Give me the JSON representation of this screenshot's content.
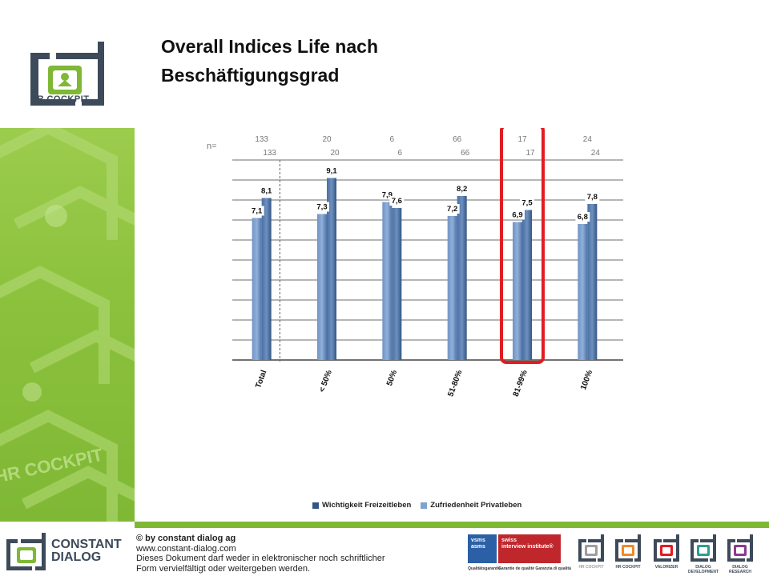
{
  "slide": {
    "title_line1": "Overall Indices Life nach",
    "title_line2": "Beschäftigungsgrad",
    "logo_text": "HR COCKPIT",
    "watermark_text": "HR COCKPIT"
  },
  "colors": {
    "sidebar_green": "#8bc13c",
    "series1": "#4a6fa3",
    "series2": "#7ea3d1",
    "highlight": "#e31b23",
    "brand_dark": "#3d4a5a"
  },
  "chart_data": {
    "type": "bar",
    "categories": [
      "Total",
      "< 50%",
      "50%",
      "51-80%",
      "81-99%",
      "100%"
    ],
    "series": [
      {
        "name": "Wichtigkeit Freizeitleben",
        "values": [
          7.1,
          7.3,
          7.9,
          7.2,
          6.9,
          6.8
        ],
        "labels": [
          "7,1",
          "7,3",
          "7,9",
          "7,2",
          "6,9",
          "6,8"
        ]
      },
      {
        "name": "Zufriedenheit Privatleben",
        "values": [
          8.1,
          9.1,
          7.6,
          8.2,
          7.5,
          7.8
        ],
        "labels": [
          "8,1",
          "9,1",
          "7,6",
          "8,2",
          "7,5",
          "7,8"
        ]
      }
    ],
    "n_label": "n=",
    "n_values": [
      [
        "133",
        "20",
        "6",
        "66",
        "17",
        "24"
      ],
      [
        "133",
        "20",
        "6",
        "66",
        "17",
        "24"
      ]
    ],
    "ylim": [
      0,
      10
    ],
    "grid": true,
    "legend_position": "bottom",
    "highlighted_category": "81-99%"
  },
  "legend": {
    "items": [
      {
        "label": "Wichtigkeit Freizeitleben"
      },
      {
        "label": "Zufriedenheit Privatleben"
      }
    ]
  },
  "footer": {
    "brand_line1": "CONSTANT",
    "brand_line2": "DIALOG",
    "copyright": "© by constant dialog ag",
    "website": "www.constant-dialog.com",
    "notice_line1": "Dieses Dokument darf weder in elektronischer noch schriftlicher",
    "notice_line2": "Form vervielfältigt oder weitergeben werden.",
    "badge1_line1": "vsms",
    "badge1_line2": "asms",
    "badge1_sub": "Qualitätsgarantie",
    "badge2_line1": "swiss",
    "badge2_line2": "interview institute®",
    "badge2_sub": "Garantie de qualité   Garanzia di qualità",
    "products": [
      {
        "label": "HR COCKPIT",
        "color": "#9e9e9e",
        "icon": "grey-product-icon"
      },
      {
        "label": "HR COCKPIT",
        "color": "#f08a24",
        "icon": "hr-cockpit-icon"
      },
      {
        "label": "VALORIZER",
        "color": "#e31b23",
        "icon": "valorizer-icon"
      },
      {
        "label": "DIALOG DEVELOPMENT",
        "color": "#2e9d8f",
        "icon": "dialog-development-icon"
      },
      {
        "label": "DIALOG RESEARCH",
        "color": "#8e3a8e",
        "icon": "dialog-research-icon"
      }
    ]
  }
}
